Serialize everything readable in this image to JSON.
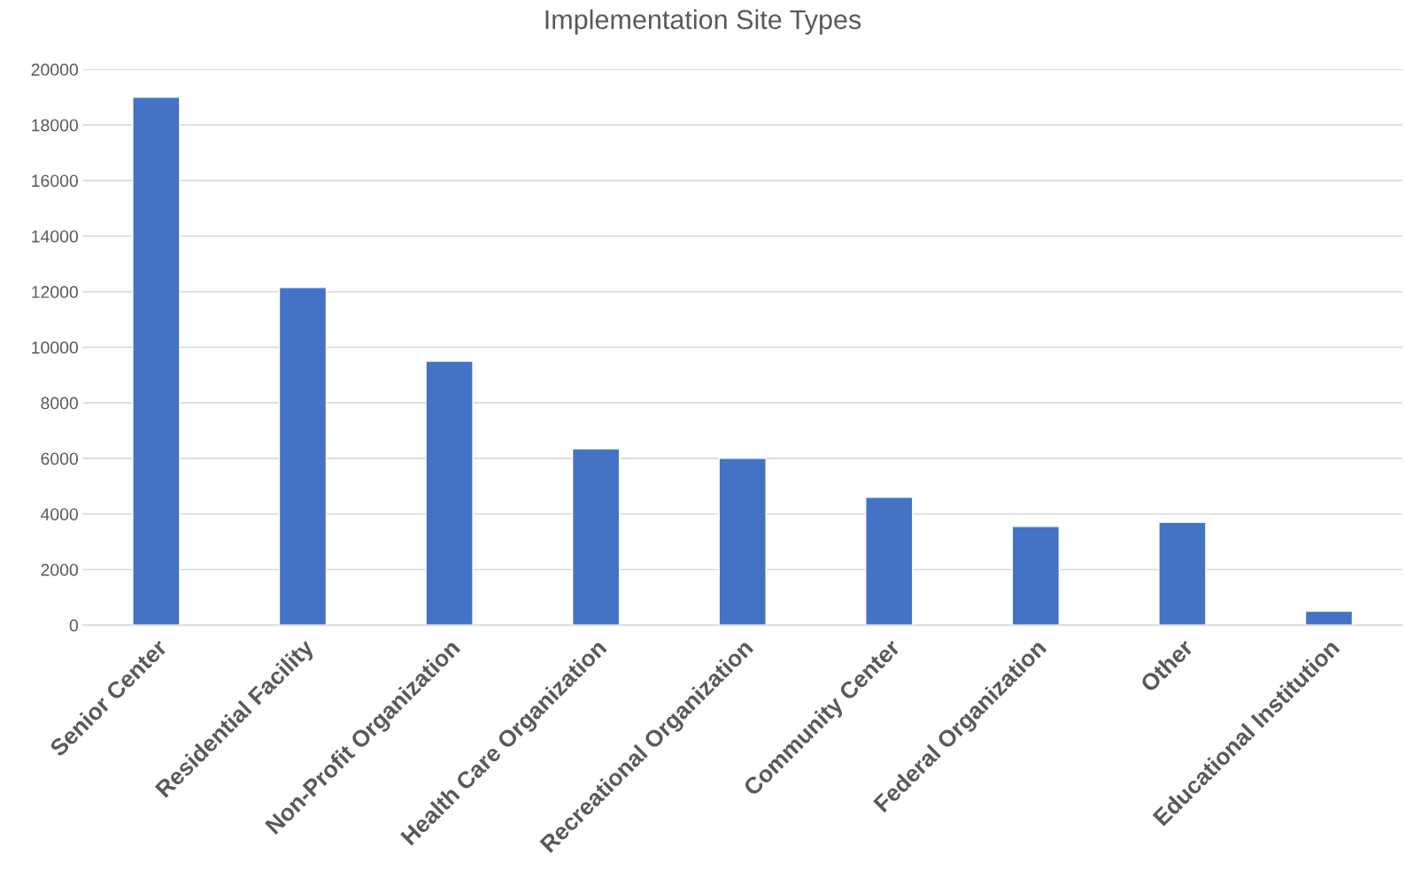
{
  "chart_data": {
    "type": "bar",
    "title": "Implementation Site Types",
    "categories": [
      "Senior Center",
      "Residential Facility",
      "Non-Profit Organization",
      "Health Care Organization",
      "Recreational Organization",
      "Community Center",
      "Federal Organization",
      "Other",
      "Educational Institution"
    ],
    "values": [
      19000,
      12150,
      9500,
      6350,
      6000,
      4600,
      3550,
      3700,
      500
    ],
    "color": "#4472c4",
    "ylim": [
      0,
      20000
    ],
    "yticks": [
      0,
      2000,
      4000,
      6000,
      8000,
      10000,
      12000,
      14000,
      16000,
      18000,
      20000
    ],
    "grid": "y",
    "legend": false
  }
}
